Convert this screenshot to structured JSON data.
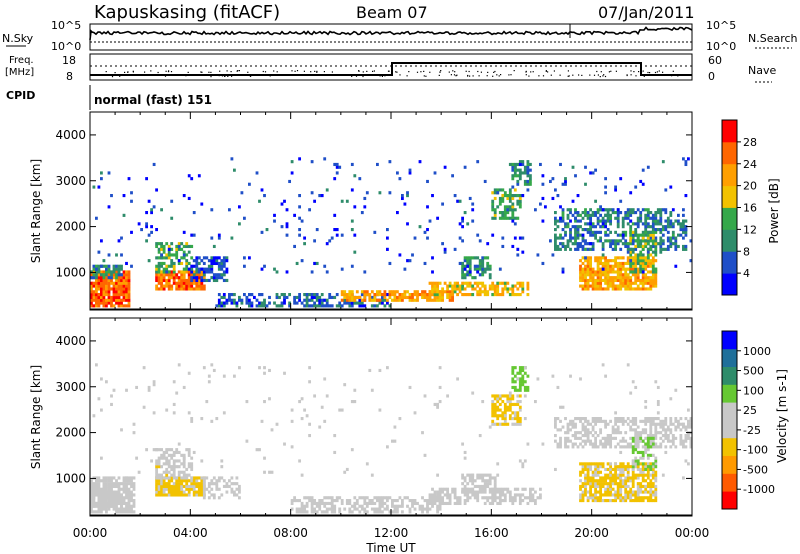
{
  "header": {
    "station": "Kapuskasing (fitACF)",
    "beam": "Beam 07",
    "date": "07/Jan/2011"
  },
  "noise_panel": {
    "left_label": "N.Sky",
    "left_ticks": [
      "10^5",
      "10^0"
    ],
    "right_label": "N.Search",
    "right_ticks": [
      "10^5",
      "10^0"
    ]
  },
  "freq_panel": {
    "left_label_1": "Freq.",
    "left_label_2": "[MHz]",
    "left_ticks": [
      "18",
      "8"
    ],
    "right_label": "Nave",
    "right_ticks": [
      "60",
      "0"
    ]
  },
  "cpid": {
    "label": "CPID",
    "program": "normal (fast) 151"
  },
  "colors": {
    "power_scale": [
      "#0000ff",
      "#1f4fc8",
      "#2e8c6a",
      "#35a84a",
      "#f2c200",
      "#ff9f00",
      "#ff6600",
      "#ff0000"
    ],
    "velocity_scale": [
      "#ff0000",
      "#ff5a00",
      "#ff9a00",
      "#f2c200",
      "#c8c8c8",
      "#c8c8c8",
      "#66c833",
      "#2e8c6a",
      "#1f6f9a",
      "#0000ff"
    ]
  },
  "chart_data": [
    {
      "type": "heatmap",
      "name": "power",
      "ylabel": "Slant Range [km]",
      "ylim": [
        180,
        4500
      ],
      "yticks": [
        "1000",
        "2000",
        "3000",
        "4000"
      ],
      "colorbar_label": "Power [dB]",
      "colorbar_ticks": [
        "4",
        "8",
        "12",
        "16",
        "20",
        "24",
        "28"
      ],
      "colorbar_range": [
        0,
        32
      ],
      "patches": [
        {
          "t0": 0.0,
          "t1": 1.6,
          "r0": 250,
          "r1": 1000,
          "level": 26,
          "density": 0.85
        },
        {
          "t0": 0.0,
          "t1": 1.3,
          "r0": 900,
          "r1": 1150,
          "level": 10,
          "density": 0.6
        },
        {
          "t0": 2.6,
          "t1": 4.6,
          "r0": 650,
          "r1": 1000,
          "level": 25,
          "density": 0.85
        },
        {
          "t0": 2.6,
          "t1": 4.1,
          "r0": 1000,
          "r1": 1650,
          "level": 14,
          "density": 0.5
        },
        {
          "t0": 4.0,
          "t1": 5.5,
          "r0": 800,
          "r1": 1300,
          "level": 6,
          "density": 0.55
        },
        {
          "t0": 5.0,
          "t1": 12.0,
          "r0": 300,
          "r1": 500,
          "level": 7,
          "density": 0.45
        },
        {
          "t0": 10.0,
          "t1": 14.5,
          "r0": 380,
          "r1": 560,
          "level": 22,
          "density": 0.7
        },
        {
          "t0": 13.5,
          "t1": 17.5,
          "r0": 500,
          "r1": 750,
          "level": 19,
          "density": 0.7
        },
        {
          "t0": 14.8,
          "t1": 16.0,
          "r0": 900,
          "r1": 1300,
          "level": 10,
          "density": 0.6
        },
        {
          "t0": 16.0,
          "t1": 17.2,
          "r0": 2200,
          "r1": 2800,
          "level": 13,
          "density": 0.6
        },
        {
          "t0": 16.8,
          "t1": 17.6,
          "r0": 2900,
          "r1": 3450,
          "level": 9,
          "density": 0.6
        },
        {
          "t0": 18.5,
          "t1": 23.8,
          "r0": 1500,
          "r1": 2400,
          "level": 9,
          "density": 0.5
        },
        {
          "t0": 19.5,
          "t1": 22.6,
          "r0": 650,
          "r1": 1300,
          "level": 21,
          "density": 0.75
        },
        {
          "t0": 21.5,
          "t1": 22.6,
          "r0": 1000,
          "r1": 1900,
          "level": 14,
          "density": 0.55
        },
        {
          "t0": 0.0,
          "t1": 24.0,
          "r0": 1000,
          "r1": 3500,
          "level": 5,
          "density": 0.03
        }
      ]
    },
    {
      "type": "heatmap",
      "name": "velocity",
      "ylabel": "Slant Range [km]",
      "ylim": [
        180,
        4500
      ],
      "yticks": [
        "1000",
        "2000",
        "3000",
        "4000"
      ],
      "xlabel": "Time UT",
      "xlim": [
        0,
        24
      ],
      "xticks": [
        "00:00",
        "04:00",
        "08:00",
        "12:00",
        "16:00",
        "20:00",
        "00:00"
      ],
      "colorbar_label": "Velocity [m s-1]",
      "colorbar_ticks": [
        "1000",
        "500",
        "100",
        "25",
        "-25",
        "-100",
        "-500",
        "-1000"
      ],
      "colorbar_range": [
        -1250,
        1250
      ],
      "patches": [
        {
          "t0": 0.0,
          "t1": 1.8,
          "r0": 250,
          "r1": 1000,
          "level": -120,
          "density": 0.8
        },
        {
          "t0": 0.0,
          "t1": 1.4,
          "r0": 400,
          "r1": 700,
          "level": 0,
          "density": 0.6
        },
        {
          "t0": 2.6,
          "t1": 4.6,
          "r0": 650,
          "r1": 1000,
          "level": -300,
          "density": 0.85
        },
        {
          "t0": 2.6,
          "t1": 4.1,
          "r0": 1000,
          "r1": 1650,
          "level": -150,
          "density": 0.5
        },
        {
          "t0": 4.6,
          "t1": 6.0,
          "r0": 600,
          "r1": 1000,
          "level": 0,
          "density": 0.4
        },
        {
          "t0": 8.0,
          "t1": 14.0,
          "r0": 300,
          "r1": 560,
          "level": -60,
          "density": 0.55
        },
        {
          "t0": 13.5,
          "t1": 18.0,
          "r0": 450,
          "r1": 750,
          "level": 0,
          "density": 0.55
        },
        {
          "t0": 14.8,
          "t1": 16.2,
          "r0": 700,
          "r1": 1100,
          "level": -120,
          "density": 0.6
        },
        {
          "t0": 16.0,
          "t1": 17.2,
          "r0": 2200,
          "r1": 2800,
          "level": -300,
          "density": 0.6
        },
        {
          "t0": 16.8,
          "t1": 17.5,
          "r0": 2900,
          "r1": 3450,
          "level": 400,
          "density": 0.6
        },
        {
          "t0": 18.5,
          "t1": 24.0,
          "r0": 1700,
          "r1": 2300,
          "level": 0,
          "density": 0.55
        },
        {
          "t0": 19.5,
          "t1": 22.6,
          "r0": 500,
          "r1": 1300,
          "level": -300,
          "density": 0.75
        },
        {
          "t0": 21.6,
          "t1": 22.6,
          "r0": 1200,
          "r1": 1900,
          "level": 300,
          "density": 0.4
        },
        {
          "t0": 0.0,
          "t1": 24.0,
          "r0": 1000,
          "r1": 3500,
          "level": -60,
          "density": 0.02
        }
      ]
    }
  ]
}
